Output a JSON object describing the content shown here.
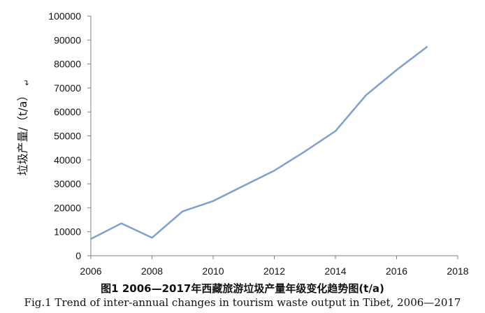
{
  "chart_data": {
    "type": "line",
    "x": [
      2006,
      2007,
      2008,
      2009,
      2010,
      2011,
      2012,
      2013,
      2014,
      2015,
      2016,
      2017
    ],
    "series": [
      {
        "values": [
          7000,
          13500,
          7500,
          18500,
          22800,
          29200,
          35500,
          43500,
          52000,
          67000,
          77500,
          87200
        ]
      }
    ],
    "xlim": [
      2006,
      2018
    ],
    "xticks": [
      "2006",
      "2008",
      "2010",
      "2012",
      "2014",
      "2016",
      "2018"
    ],
    "ylim": [
      0,
      100000
    ],
    "yticks": [
      "0",
      "10000",
      "20000",
      "30000",
      "40000",
      "50000",
      "60000",
      "70000",
      "80000",
      "90000",
      "100000"
    ],
    "ylabel": "垃圾产量/（t/a）",
    "ylabel_mark": "↵",
    "grid": false,
    "line_color": "#7ca0d0"
  },
  "caption": {
    "chinese": "图1 2006—2017年西藏旅游垃圾产量年级变化趋势图(t/a)",
    "english": "Fig.1 Trend of inter-annual changes in tourism waste output in Tibet, 2006—2017"
  }
}
